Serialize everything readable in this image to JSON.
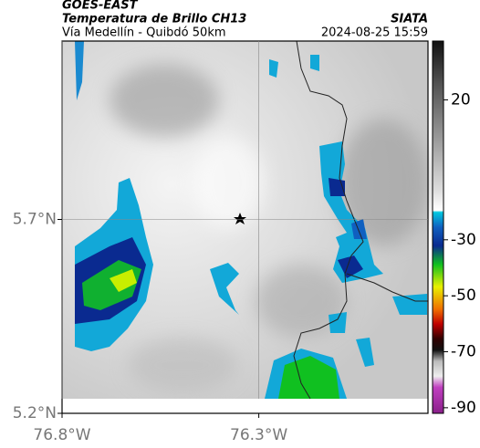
{
  "header": {
    "source": "GOES-EAST",
    "product": "Temperatura de Brillo CH13",
    "route": "Vía Medellín - Quibdó 50km",
    "brand": "SIATA",
    "timestamp": "2024-08-25 15:59"
  },
  "map": {
    "xlim": [
      -76.8,
      -75.87
    ],
    "ylim": [
      5.2,
      6.16
    ],
    "xticks": [
      {
        "value": -76.8,
        "label": "76.8°W"
      },
      {
        "value": -76.3,
        "label": "76.3°W"
      }
    ],
    "yticks": [
      {
        "value": 5.7,
        "label": "5.7°N"
      },
      {
        "value": 5.2,
        "label": "5.2°N"
      }
    ]
  },
  "colorbar": {
    "lim": [
      41,
      -92
    ],
    "ticks": [
      20,
      -30,
      -50,
      -70,
      -90
    ]
  }
}
